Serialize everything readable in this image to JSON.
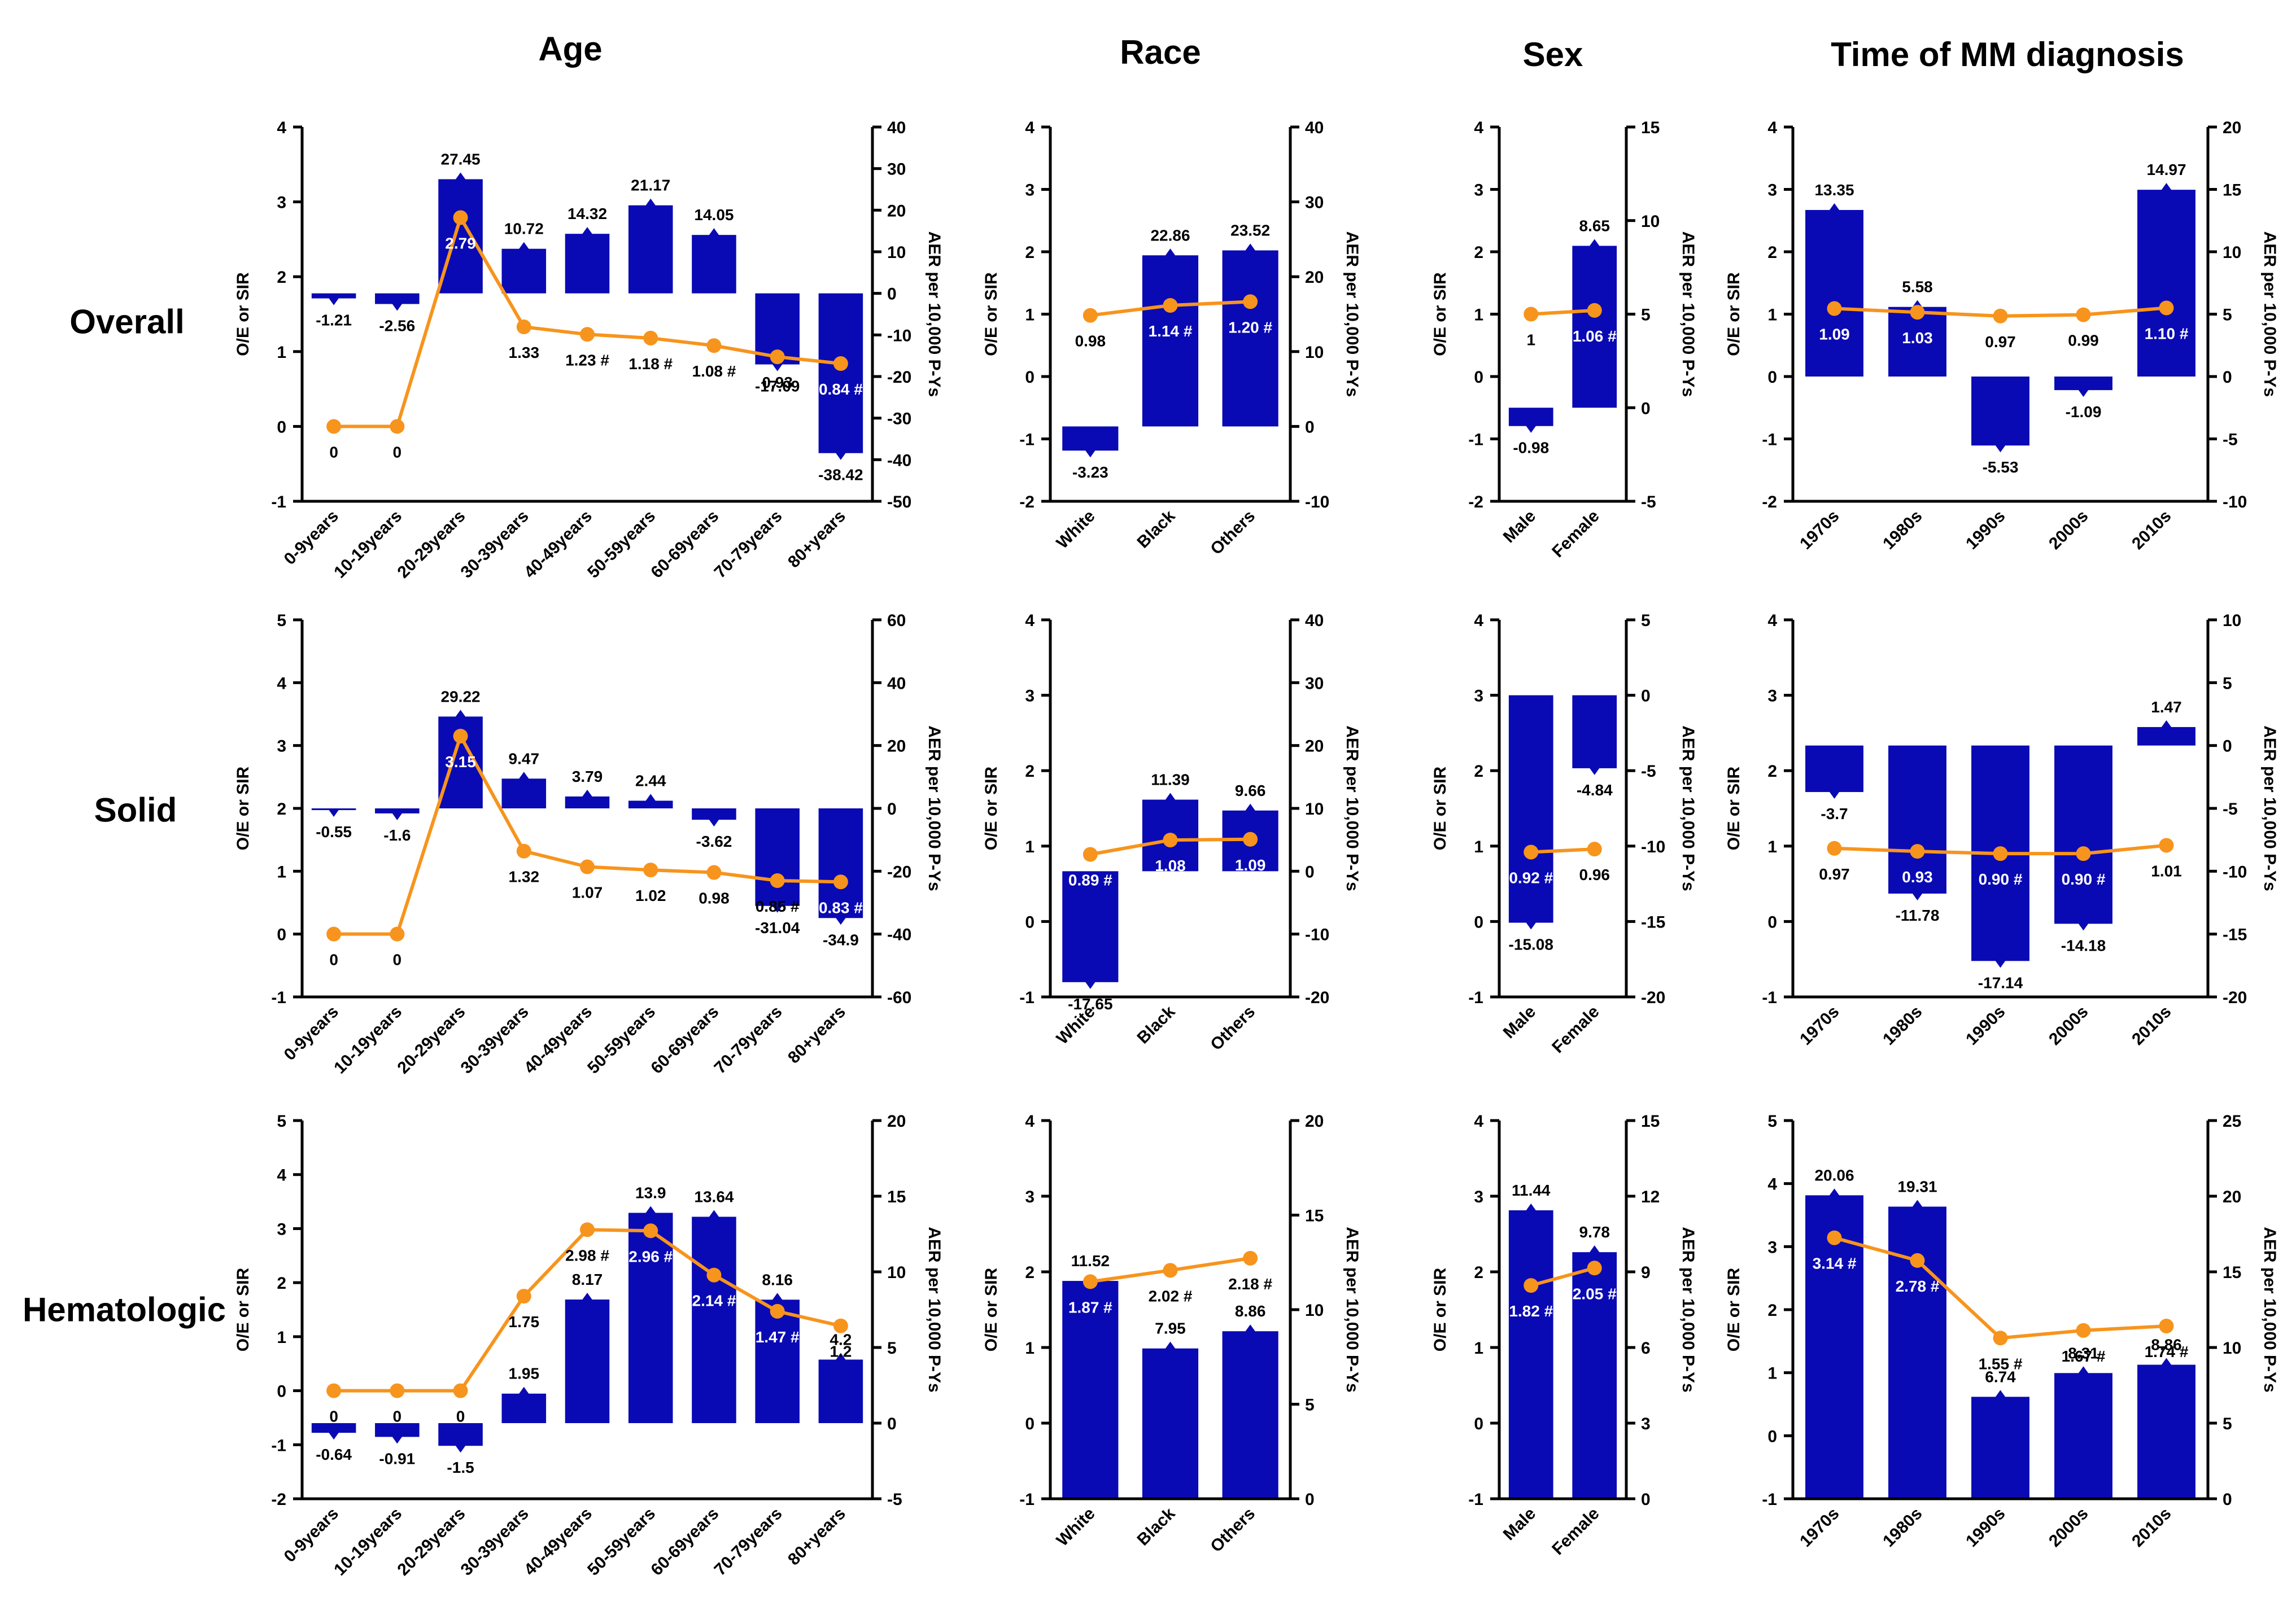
{
  "column_titles": [
    "Age",
    "Race",
    "Sex",
    "Time of MM diagnosis"
  ],
  "row_titles": [
    "Overall",
    "Solid",
    "Hematologic"
  ],
  "colors": {
    "bar": "#0a0ab4",
    "line": "#f7941d",
    "axis": "#000000",
    "label_on_bar": "#ffffff",
    "label": "#000000"
  },
  "chart_data": [
    {
      "id": "overall-age",
      "type": "bar",
      "title": "Age",
      "row": "Overall",
      "ylabel": "O/E or SIR",
      "y2label": "AER per 10,000 P-Ys",
      "categories": [
        "0-9years",
        "10-19years",
        "20-29years",
        "30-39years",
        "40-49years",
        "50-59years",
        "60-69years",
        "70-79years",
        "80+years"
      ],
      "ylim": [
        -1,
        4
      ],
      "yticks": [
        "-1",
        "0",
        "1",
        "2",
        "3",
        "4"
      ],
      "y2lim": [
        -50,
        40
      ],
      "y2ticks": [
        "-50",
        "-40",
        "-30",
        "-20",
        "-10",
        "0",
        "10",
        "20",
        "30",
        "40"
      ],
      "bars": [
        -1.21,
        -2.56,
        27.45,
        10.72,
        14.32,
        21.17,
        14.05,
        -17.09,
        -38.42
      ],
      "bar_labels": [
        "-1.21",
        "-2.56",
        "27.45",
        "10.72",
        "14.32",
        "21.17",
        "14.05",
        "-17.09",
        "-38.42"
      ],
      "line": [
        0,
        0,
        2.79,
        1.33,
        1.23,
        1.18,
        1.08,
        0.93,
        0.84
      ],
      "line_labels": [
        "0",
        "0",
        "2.79",
        "1.33",
        "1.23 #",
        "1.18 #",
        "1.08 #",
        "0.93",
        "0.84 #"
      ]
    },
    {
      "id": "overall-race",
      "type": "bar",
      "title": "Race",
      "row": "Overall",
      "ylabel": "O/E or SIR",
      "y2label": "AER per 10,000 P-Ys",
      "categories": [
        "White",
        "Black",
        "Others"
      ],
      "ylim": [
        -2,
        4
      ],
      "yticks": [
        "-2",
        "-1",
        "0",
        "1",
        "2",
        "3",
        "4"
      ],
      "y2lim": [
        -10,
        40
      ],
      "y2ticks": [
        "-10",
        "0",
        "10",
        "20",
        "30",
        "40"
      ],
      "bars": [
        -3.23,
        22.86,
        23.52
      ],
      "bar_labels": [
        "-3.23",
        "22.86",
        "23.52"
      ],
      "line": [
        0.98,
        1.14,
        1.2
      ],
      "line_labels": [
        "0.98",
        "1.14 #",
        "1.20 #"
      ]
    },
    {
      "id": "overall-sex",
      "type": "bar",
      "title": "Sex",
      "row": "Overall",
      "ylabel": "O/E or SIR",
      "y2label": "AER per 10,000 P-Ys",
      "categories": [
        "Male",
        "Female"
      ],
      "ylim": [
        -2,
        4
      ],
      "yticks": [
        "-2",
        "-1",
        "0",
        "1",
        "2",
        "3",
        "4"
      ],
      "y2lim": [
        -5,
        15
      ],
      "y2ticks": [
        "-5",
        "0",
        "5",
        "10",
        "15"
      ],
      "bars": [
        -0.98,
        8.65
      ],
      "bar_labels": [
        "-0.98",
        "8.65"
      ],
      "line": [
        1,
        1.06
      ],
      "line_labels": [
        "1",
        "1.06 #"
      ]
    },
    {
      "id": "overall-time",
      "type": "bar",
      "title": "Time of MM diagnosis",
      "row": "Overall",
      "ylabel": "O/E or SIR",
      "y2label": "AER per 10,000 P-Ys",
      "categories": [
        "1970s",
        "1980s",
        "1990s",
        "2000s",
        "2010s"
      ],
      "ylim": [
        -2,
        4
      ],
      "yticks": [
        "-2",
        "-1",
        "0",
        "1",
        "2",
        "3",
        "4"
      ],
      "y2lim": [
        -10,
        20
      ],
      "y2ticks": [
        "-10",
        "-5",
        "0",
        "5",
        "10",
        "15",
        "20"
      ],
      "bars": [
        13.35,
        5.58,
        -5.53,
        -1.09,
        14.97
      ],
      "bar_labels": [
        "13.35",
        "5.58",
        "-5.53",
        "-1.09",
        "14.97"
      ],
      "line": [
        1.09,
        1.03,
        0.97,
        0.99,
        1.1
      ],
      "line_labels": [
        "1.09",
        "1.03",
        "0.97",
        "0.99",
        "1.10 #"
      ]
    },
    {
      "id": "solid-age",
      "type": "bar",
      "title": "Age",
      "row": "Solid",
      "ylabel": "O/E or SIR",
      "y2label": "AER per 10,000 P-Ys",
      "categories": [
        "0-9years",
        "10-19years",
        "20-29years",
        "30-39years",
        "40-49years",
        "50-59years",
        "60-69years",
        "70-79years",
        "80+years"
      ],
      "ylim": [
        -1,
        5
      ],
      "yticks": [
        "-1",
        "0",
        "1",
        "2",
        "3",
        "4",
        "5"
      ],
      "y2lim": [
        -60,
        60
      ],
      "y2ticks": [
        "-60",
        "-40",
        "-20",
        "0",
        "20",
        "40",
        "60"
      ],
      "bars": [
        -0.55,
        -1.6,
        29.22,
        9.47,
        3.79,
        2.44,
        -3.62,
        -31.04,
        -34.9
      ],
      "bar_labels": [
        "-0.55",
        "-1.6",
        "29.22",
        "9.47",
        "3.79",
        "2.44",
        "-3.62",
        "-31.04",
        "-34.9"
      ],
      "line": [
        0,
        0,
        3.15,
        1.32,
        1.07,
        1.02,
        0.98,
        0.85,
        0.83
      ],
      "line_labels": [
        "0",
        "0",
        "3.15",
        "1.32",
        "1.07",
        "1.02",
        "0.98",
        "0.85 #",
        "0.83 #"
      ]
    },
    {
      "id": "solid-race",
      "type": "bar",
      "title": "Race",
      "row": "Solid",
      "ylabel": "O/E or SIR",
      "y2label": "AER per 10,000 P-Ys",
      "categories": [
        "White",
        "Black",
        "Others"
      ],
      "ylim": [
        -1,
        4
      ],
      "yticks": [
        "-1",
        "0",
        "1",
        "2",
        "3",
        "4"
      ],
      "y2lim": [
        -20,
        40
      ],
      "y2ticks": [
        "-20",
        "-10",
        "0",
        "10",
        "20",
        "30",
        "40"
      ],
      "bars": [
        -17.65,
        11.39,
        9.66
      ],
      "bar_labels": [
        "-17.65",
        "11.39",
        "9.66"
      ],
      "line": [
        0.89,
        1.08,
        1.09
      ],
      "line_labels": [
        "0.89 #",
        "1.08",
        "1.09"
      ]
    },
    {
      "id": "solid-sex",
      "type": "bar",
      "title": "Sex",
      "row": "Solid",
      "ylabel": "O/E or SIR",
      "y2label": "AER per 10,000 P-Ys",
      "categories": [
        "Male",
        "Female"
      ],
      "ylim": [
        -1,
        4
      ],
      "yticks": [
        "-1",
        "0",
        "1",
        "2",
        "3",
        "4"
      ],
      "y2lim": [
        -20,
        5
      ],
      "y2ticks": [
        "-20",
        "-15",
        "-10",
        "-5",
        "0",
        "5"
      ],
      "bars": [
        -15.08,
        -4.84
      ],
      "bar_labels": [
        "-15.08",
        "-4.84"
      ],
      "line": [
        0.92,
        0.96
      ],
      "line_labels": [
        "0.92 #",
        "0.96"
      ]
    },
    {
      "id": "solid-time",
      "type": "bar",
      "title": "Time of MM diagnosis",
      "row": "Solid",
      "ylabel": "O/E or SIR",
      "y2label": "AER per 10,000 P-Ys",
      "categories": [
        "1970s",
        "1980s",
        "1990s",
        "2000s",
        "2010s"
      ],
      "ylim": [
        -1,
        4
      ],
      "yticks": [
        "-1",
        "0",
        "1",
        "2",
        "3",
        "4"
      ],
      "y2lim": [
        -20,
        10
      ],
      "y2ticks": [
        "-20",
        "-15",
        "-10",
        "-5",
        "0",
        "5",
        "10"
      ],
      "bars": [
        -3.7,
        -11.78,
        -17.14,
        -14.18,
        1.47
      ],
      "bar_labels": [
        "-3.7",
        "-11.78",
        "-17.14",
        "-14.18",
        "1.47"
      ],
      "line": [
        0.97,
        0.93,
        0.9,
        0.9,
        1.01
      ],
      "line_labels": [
        "0.97",
        "0.93",
        "0.90 #",
        "0.90 #",
        "1.01"
      ]
    },
    {
      "id": "hema-age",
      "type": "bar",
      "title": "Age",
      "row": "Hematologic",
      "ylabel": "O/E or SIR",
      "y2label": "AER per 10,000 P-Ys",
      "categories": [
        "0-9years",
        "10-19years",
        "20-29years",
        "30-39years",
        "40-49years",
        "50-59years",
        "60-69years",
        "70-79years",
        "80+years"
      ],
      "ylim": [
        -2,
        5
      ],
      "yticks": [
        "-2",
        "-1",
        "0",
        "1",
        "2",
        "3",
        "4",
        "5"
      ],
      "y2lim": [
        -5,
        20
      ],
      "y2ticks": [
        "-5",
        "0",
        "5",
        "10",
        "15",
        "20"
      ],
      "bars": [
        -0.64,
        -0.91,
        -1.5,
        1.95,
        8.17,
        13.9,
        13.64,
        8.16,
        4.2
      ],
      "bar_labels": [
        "-0.64",
        "-0.91",
        "-1.5",
        "1.95",
        "8.17",
        "13.9",
        "13.64",
        "8.16",
        "4.2"
      ],
      "line": [
        0,
        0,
        0,
        1.75,
        2.98,
        2.96,
        2.14,
        1.47,
        1.2
      ],
      "line_labels": [
        "0",
        "0",
        "0",
        "1.75",
        "2.98 #",
        "2.96 #",
        "2.14 #",
        "1.47 #",
        "1.2"
      ]
    },
    {
      "id": "hema-race",
      "type": "bar",
      "title": "Race",
      "row": "Hematologic",
      "ylabel": "O/E or SIR",
      "y2label": "AER per 10,000 P-Ys",
      "categories": [
        "White",
        "Black",
        "Others"
      ],
      "ylim": [
        -1,
        4
      ],
      "yticks": [
        "-1",
        "0",
        "1",
        "2",
        "3",
        "4"
      ],
      "y2lim": [
        0,
        20
      ],
      "y2ticks": [
        "0",
        "5",
        "10",
        "15",
        "20"
      ],
      "bars": [
        11.52,
        7.95,
        8.86
      ],
      "bar_labels": [
        "11.52",
        "7.95",
        "8.86"
      ],
      "line": [
        1.87,
        2.02,
        2.18
      ],
      "line_labels": [
        "1.87 #",
        "2.02 #",
        "2.18 #"
      ]
    },
    {
      "id": "hema-sex",
      "type": "bar",
      "title": "Sex",
      "row": "Hematologic",
      "ylabel": "O/E or SIR",
      "y2label": "AER per 10,000 P-Ys",
      "categories": [
        "Male",
        "Female"
      ],
      "ylim": [
        -1,
        4
      ],
      "yticks": [
        "-1",
        "0",
        "1",
        "2",
        "3",
        "4"
      ],
      "y2lim": [
        0,
        15
      ],
      "y2ticks": [
        "0",
        "3",
        "6",
        "9",
        "12",
        "15"
      ],
      "bars": [
        11.44,
        9.78
      ],
      "bar_labels": [
        "11.44",
        "9.78"
      ],
      "line": [
        1.82,
        2.05
      ],
      "line_labels": [
        "1.82 #",
        "2.05 #"
      ]
    },
    {
      "id": "hema-time",
      "type": "bar",
      "title": "Time of MM diagnosis",
      "row": "Hematologic",
      "ylabel": "O/E or SIR",
      "y2label": "AER per 10,000 P-Ys",
      "categories": [
        "1970s",
        "1980s",
        "1990s",
        "2000s",
        "2010s"
      ],
      "ylim": [
        -1,
        5
      ],
      "yticks": [
        "-1",
        "0",
        "1",
        "2",
        "3",
        "4",
        "5"
      ],
      "y2lim": [
        0,
        25
      ],
      "y2ticks": [
        "0",
        "5",
        "10",
        "15",
        "20",
        "25"
      ],
      "bars": [
        20.06,
        19.31,
        6.74,
        8.31,
        8.86
      ],
      "bar_labels": [
        "20.06",
        "19.31",
        "6.74",
        "8.31",
        "8.86"
      ],
      "line": [
        3.14,
        2.78,
        1.55,
        1.67,
        1.74
      ],
      "line_labels": [
        "3.14 #",
        "2.78 #",
        "1.55 #",
        "1.67 #",
        "1.74 #"
      ]
    }
  ]
}
